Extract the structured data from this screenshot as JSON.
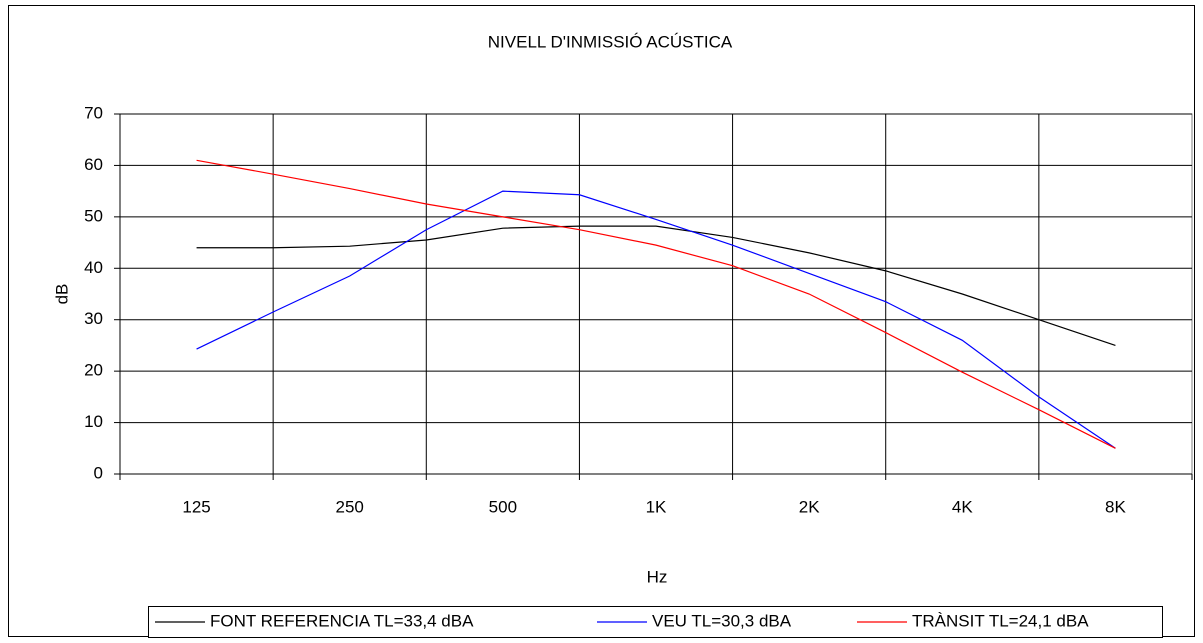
{
  "chart_data": {
    "type": "line",
    "title": "NIVELL D'INMISSIÓ ACÚSTICA",
    "x_label": "Hz",
    "y_label": "dB",
    "categories": [
      "125",
      null,
      "250",
      null,
      "500",
      null,
      "1K",
      null,
      "2K",
      null,
      "4K",
      null,
      "8K"
    ],
    "series": [
      {
        "name": "FONT REFERENCIA TL=33,4 dBA",
        "color": "#000000",
        "values": [
          44,
          44,
          44.3,
          45.5,
          47.8,
          48.2,
          48.2,
          46,
          43,
          39.5,
          35,
          30,
          25
        ]
      },
      {
        "name": "VEU TL=30,3 dBA",
        "color": "#0000ff",
        "values": [
          24.3,
          31.5,
          38.5,
          47.5,
          55,
          54.3,
          49.5,
          44.5,
          39,
          33.5,
          26,
          15,
          5
        ]
      },
      {
        "name": "TRÀNSIT TL=24,1 dBA",
        "color": "#ff0000",
        "values": [
          61,
          58.3,
          55.5,
          52.5,
          50,
          47.5,
          44.5,
          40.5,
          35,
          27.5,
          19.8,
          12.5,
          5
        ]
      }
    ],
    "ylim": [
      0,
      70
    ],
    "yticks": [
      0,
      10,
      20,
      30,
      40,
      50,
      60,
      70
    ],
    "grid": true,
    "legend": "bottom"
  }
}
